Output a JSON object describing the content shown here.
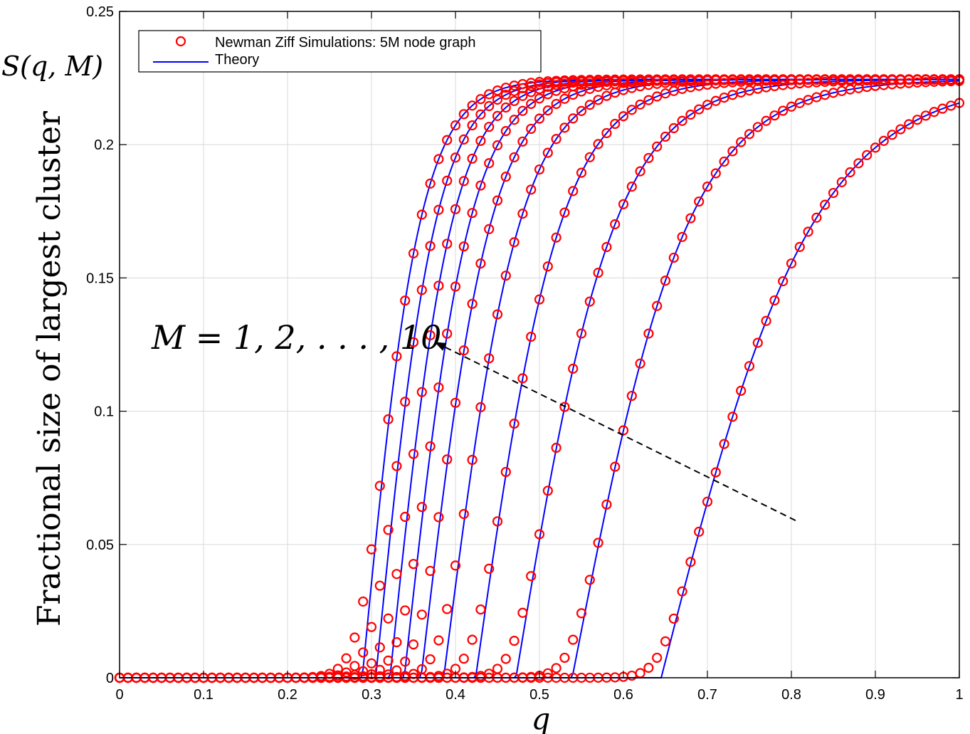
{
  "chart_data": {
    "type": "line",
    "xlabel": "q",
    "ylabel": "Fractional size of largest cluster",
    "ylabel_top": "S(q, M)",
    "xlim": [
      0,
      1
    ],
    "ylim": [
      0,
      0.25
    ],
    "x_ticks": [
      "0",
      "0.1",
      "0.2",
      "0.3",
      "0.4",
      "0.5",
      "0.6",
      "0.7",
      "0.8",
      "0.9",
      "1"
    ],
    "y_ticks": [
      "0",
      "0.05",
      "0.1",
      "0.15",
      "0.2",
      "0.25"
    ],
    "grid": true,
    "legend_position": "top-left",
    "legend": [
      {
        "label": "Newman Ziff Simulations: 5M node graph",
        "marker": "circle",
        "color": "#ff0000"
      },
      {
        "label": "Theory",
        "marker": "line",
        "color": "#0000ff"
      }
    ],
    "annotation": {
      "text": "M = 1, 2, . . . , 10",
      "arrow_from": [
        0.805,
        0.059
      ],
      "arrow_to": [
        0.375,
        0.126
      ]
    },
    "saturation": 0.2245,
    "series": [
      {
        "M": 1,
        "threshold": 0.289,
        "steepness": 14.5,
        "color": "#0000ff"
      },
      {
        "M": 2,
        "threshold": 0.305,
        "steepness": 14.0,
        "color": "#0000ff"
      },
      {
        "M": 3,
        "threshold": 0.322,
        "steepness": 13.5,
        "color": "#0000ff"
      },
      {
        "M": 4,
        "threshold": 0.339,
        "steepness": 12.8,
        "color": "#0000ff"
      },
      {
        "M": 5,
        "threshold": 0.359,
        "steepness": 12.0,
        "color": "#0000ff"
      },
      {
        "M": 6,
        "threshold": 0.386,
        "steepness": 11.0,
        "color": "#0000ff"
      },
      {
        "M": 7,
        "threshold": 0.424,
        "steepness": 9.8,
        "color": "#0000ff"
      },
      {
        "M": 8,
        "threshold": 0.472,
        "steepness": 8.4,
        "color": "#0000ff"
      },
      {
        "M": 9,
        "threshold": 0.539,
        "steepness": 7.2,
        "color": "#0000ff"
      },
      {
        "M": 10,
        "threshold": 0.645,
        "steepness": 5.5,
        "color": "#0000ff"
      }
    ],
    "marker_color": "#ff0000",
    "line_color": "#0000ff"
  }
}
